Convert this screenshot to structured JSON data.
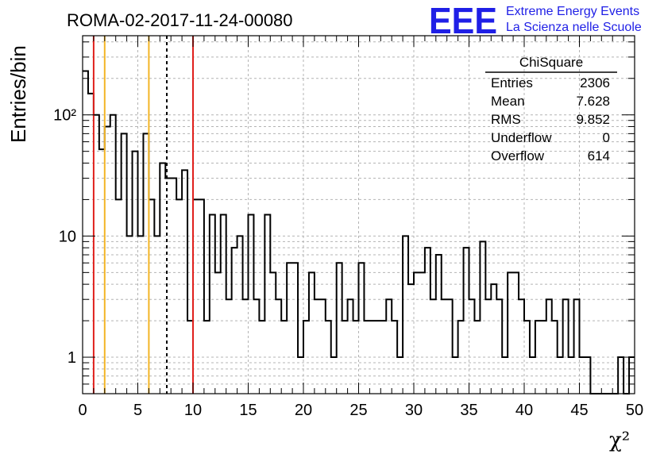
{
  "chart_data": {
    "type": "bar",
    "title": "ROMA-02-2017-11-24-00080",
    "xlabel": "χ²",
    "ylabel": "Entries/bin",
    "y_scale": "log",
    "xlim": [
      0,
      50
    ],
    "ylim": [
      0.5,
      450
    ],
    "x_ticks": [
      "0",
      "5",
      "10",
      "15",
      "20",
      "25",
      "30",
      "35",
      "40",
      "45",
      "50"
    ],
    "y_ticks": [
      "1",
      "10",
      "10²"
    ],
    "grid": true,
    "bin_width": 0.5,
    "bin_edges_start": 0,
    "values": [
      230,
      150,
      100,
      52,
      80,
      100,
      20,
      70,
      10,
      50,
      10,
      70,
      20,
      10,
      40,
      30,
      30,
      20,
      35,
      2,
      20,
      20,
      2,
      15,
      5,
      15,
      3,
      8,
      10,
      3,
      15,
      3,
      2,
      15,
      5,
      3,
      2,
      6,
      6,
      1,
      2,
      5,
      3,
      3,
      2,
      1,
      6,
      2,
      3,
      2,
      6,
      2,
      2,
      2,
      2,
      3,
      2,
      1,
      10,
      4,
      5,
      5,
      8,
      3,
      7,
      3,
      3,
      1,
      2,
      8,
      3,
      2,
      9,
      3,
      4,
      3,
      1,
      5,
      5,
      3,
      2,
      1,
      2,
      2,
      3,
      2,
      1,
      3,
      1,
      3,
      1,
      1,
      0,
      0,
      0,
      0,
      0,
      1,
      0,
      1
    ],
    "vertical_lines": [
      {
        "x": 1,
        "color": "#e0201c",
        "style": "solid"
      },
      {
        "x": 2,
        "color": "#f3b526",
        "style": "solid"
      },
      {
        "x": 6,
        "color": "#f3b526",
        "style": "solid"
      },
      {
        "x": 7.628,
        "color": "#000000",
        "style": "dashed"
      },
      {
        "x": 10,
        "color": "#e0201c",
        "style": "solid"
      }
    ],
    "stats_box": {
      "title": "ChiSquare",
      "rows": [
        {
          "label": "Entries",
          "value": "2306"
        },
        {
          "label": "Mean",
          "value": "7.628"
        },
        {
          "label": "RMS",
          "value": "9.852"
        },
        {
          "label": "Underflow",
          "value": "0"
        },
        {
          "label": "Overflow",
          "value": "614"
        }
      ]
    }
  },
  "logo": {
    "mark": "EEE",
    "line1": "Extreme Energy Events",
    "line2": "La Scienza nelle Scuole",
    "color": "#1f1fe6"
  }
}
